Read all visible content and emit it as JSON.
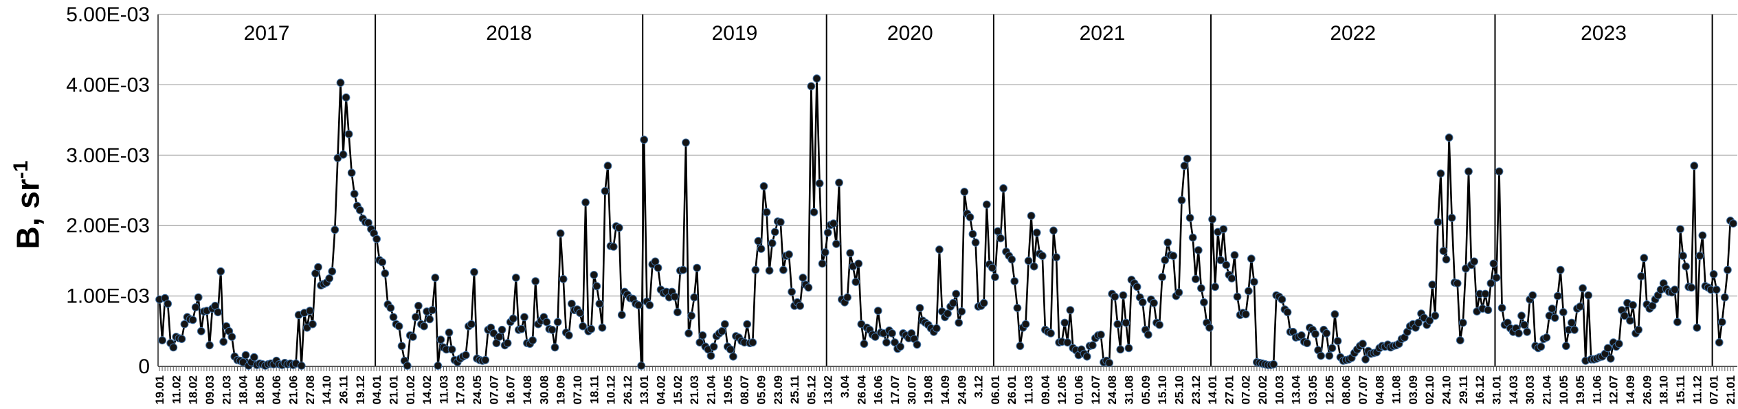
{
  "chart_data": {
    "type": "line",
    "title": "",
    "y_title": {
      "text": "B, sr",
      "superscript": "-1"
    },
    "xlabel": "",
    "ylim": [
      0,
      0.005
    ],
    "value_unit": "1e-3 sr^-1",
    "grid": "horizontal-on",
    "legend": "none",
    "y_ticks": [
      "0",
      "1.00E-03",
      "2.00E-03",
      "3.00E-03",
      "4.00E-03",
      "5.00E-03"
    ],
    "label_every_nth_point": 6,
    "colors": {
      "line": "#000000",
      "marker_fill": "#141414",
      "marker_edge": "#3e6fa3",
      "gridline": "#a6a6a6",
      "axis": "#595959",
      "separator": "#000000",
      "text": "#000000"
    },
    "years": [
      {
        "label": "2017",
        "tick_labels": [
          "19.01",
          "11.02",
          "18.02",
          "09.03",
          "21.03",
          "18.04",
          "18.05",
          "04.06",
          "21.06",
          "27.08",
          "14.10",
          "26.11",
          "19.12"
        ],
        "values": [
          0.95,
          0.37,
          0.97,
          0.89,
          0.33,
          0.27,
          0.42,
          0.4,
          0.39,
          0.6,
          0.7,
          0.67,
          0.66,
          0.84,
          0.98,
          0.5,
          0.78,
          0.79,
          0.3,
          0.82,
          0.86,
          0.77,
          1.35,
          0.35,
          0.57,
          0.5,
          0.42,
          0.14,
          0.09,
          0.08,
          0.06,
          0.16,
          0.01,
          0.06,
          0.13,
          0.02,
          0.04,
          0.03,
          0.01,
          0.03,
          0.04,
          0.03,
          0.08,
          0.03,
          0.02,
          0.05,
          0.03,
          0.04,
          0.02,
          0.04,
          0.73,
          0.01,
          0.76,
          0.55,
          0.79,
          0.6,
          1.32,
          1.41,
          1.15,
          1.17,
          1.19,
          1.25,
          1.35,
          1.94,
          2.96,
          4.03,
          3.01,
          3.82,
          3.3,
          2.75,
          2.45,
          2.28,
          2.22,
          2.1,
          2.05,
          2.04,
          1.95,
          1.89
        ]
      },
      {
        "label": "2018",
        "tick_labels": [
          "04.01",
          "21.01",
          "01.02",
          "14.02",
          "11.03",
          "17.03",
          "24.05",
          "07.07",
          "16.07",
          "14.08",
          "30.08",
          "19.09",
          "07.10",
          "18.11",
          "10.12",
          "26.12"
        ],
        "values": [
          1.81,
          1.51,
          1.48,
          1.32,
          0.88,
          0.83,
          0.7,
          0.6,
          0.57,
          0.29,
          0.08,
          0.01,
          0.44,
          0.42,
          0.7,
          0.86,
          0.6,
          0.57,
          0.78,
          0.67,
          0.8,
          1.26,
          0.01,
          0.38,
          0.27,
          0.24,
          0.48,
          0.24,
          0.09,
          0.06,
          0.11,
          0.14,
          0.16,
          0.57,
          0.6,
          1.34,
          0.11,
          0.09,
          0.08,
          0.09,
          0.52,
          0.55,
          0.47,
          0.33,
          0.42,
          0.52,
          0.3,
          0.33,
          0.63,
          0.68,
          1.26,
          0.52,
          0.53,
          0.7,
          0.33,
          0.32,
          0.37,
          1.21,
          0.6,
          0.65,
          0.7,
          0.63,
          0.53,
          0.52,
          0.27,
          0.63,
          1.89,
          1.24,
          0.48,
          0.44,
          0.89,
          0.8,
          0.81,
          0.76,
          0.57,
          2.33,
          0.5,
          0.53,
          1.3,
          1.14,
          0.89,
          0.55,
          2.49,
          2.85,
          1.71,
          1.7,
          1.99,
          1.97,
          0.73,
          1.06,
          1.02,
          0.97,
          0.96,
          0.89,
          0.87,
          0.01
        ]
      },
      {
        "label": "2019",
        "tick_labels": [
          "13.01",
          "04.02",
          "15.02",
          "21.03",
          "21.04",
          "19.05",
          "08.07",
          "05.09",
          "23.09",
          "25.11",
          "05.12"
        ],
        "values": [
          3.22,
          0.92,
          0.87,
          1.45,
          1.49,
          1.4,
          1.09,
          1.04,
          1.06,
          0.98,
          1.06,
          0.99,
          0.77,
          1.36,
          1.37,
          3.18,
          0.47,
          0.72,
          0.98,
          1.4,
          0.34,
          0.44,
          0.28,
          0.24,
          0.15,
          0.28,
          0.43,
          0.47,
          0.5,
          0.6,
          0.28,
          0.24,
          0.14,
          0.43,
          0.41,
          0.36,
          0.34,
          0.6,
          0.33,
          0.34,
          1.37,
          1.78,
          1.67,
          2.56,
          2.19,
          1.36,
          1.75,
          1.91,
          2.06,
          2.05,
          1.37,
          1.57,
          1.59,
          1.06,
          0.86,
          0.91,
          0.86,
          1.26,
          1.16,
          1.12,
          3.98,
          2.19,
          4.09,
          2.6,
          1.46,
          1.62
        ]
      },
      {
        "label": "2020",
        "tick_labels": [
          "13.02",
          "3.04",
          "26.04",
          "16.06",
          "17.07",
          "30.07",
          "19.08",
          "14.09",
          "24.09",
          "3.12"
        ],
        "values": [
          1.9,
          2.01,
          2.03,
          1.74,
          2.61,
          0.95,
          0.91,
          0.98,
          1.61,
          1.42,
          1.2,
          1.46,
          0.6,
          0.32,
          0.55,
          0.52,
          0.45,
          0.42,
          0.79,
          0.48,
          0.47,
          0.34,
          0.51,
          0.47,
          0.34,
          0.25,
          0.28,
          0.47,
          0.44,
          0.4,
          0.47,
          0.39,
          0.31,
          0.83,
          0.65,
          0.62,
          0.59,
          0.54,
          0.49,
          0.54,
          1.66,
          0.78,
          0.7,
          0.75,
          0.85,
          0.9,
          1.03,
          0.62,
          0.78,
          2.48,
          2.17,
          2.12,
          1.88,
          1.76,
          0.85,
          0.86,
          0.9,
          2.3,
          1.45,
          1.4
        ]
      },
      {
        "label": "2021",
        "tick_labels": [
          "06.01",
          "26.01",
          "11.03",
          "09.04",
          "12.05",
          "01.06",
          "12.07",
          "24.08",
          "31.08",
          "05.09",
          "15.10",
          "25.10",
          "23.12"
        ],
        "values": [
          1.27,
          1.92,
          1.82,
          2.53,
          1.63,
          1.57,
          1.52,
          1.21,
          0.83,
          0.29,
          0.55,
          0.6,
          1.5,
          2.14,
          1.42,
          1.9,
          1.6,
          1.57,
          0.52,
          0.49,
          0.47,
          1.93,
          1.55,
          0.34,
          0.35,
          0.62,
          0.34,
          0.8,
          0.26,
          0.23,
          0.16,
          0.24,
          0.18,
          0.14,
          0.29,
          0.3,
          0.4,
          0.44,
          0.45,
          0.06,
          0.08,
          0.05,
          1.03,
          0.99,
          0.6,
          0.24,
          1.01,
          0.62,
          0.26,
          1.23,
          1.18,
          1.13,
          0.98,
          0.91,
          0.52,
          0.45,
          0.95,
          0.9,
          0.62,
          0.59,
          1.27,
          1.51,
          1.76,
          1.58,
          1.57,
          1.0,
          1.05,
          2.36,
          2.85,
          2.95,
          2.11,
          1.83,
          1.24,
          1.65,
          1.11,
          0.91,
          0.62,
          0.55
        ]
      },
      {
        "label": "2022",
        "tick_labels": [
          "14.01",
          "27.01",
          "07.02",
          "20.02",
          "10.03",
          "13.04",
          "03.05",
          "12.05",
          "08.06",
          "07.07",
          "04.08",
          "11.08",
          "03.09",
          "02.10",
          "24.10",
          "29.11",
          "16.12"
        ],
        "values": [
          2.09,
          1.13,
          1.91,
          1.51,
          1.95,
          1.44,
          1.3,
          1.25,
          1.58,
          0.99,
          0.73,
          0.76,
          0.74,
          1.07,
          1.53,
          1.2,
          0.06,
          0.05,
          0.04,
          0.03,
          0.02,
          0.02,
          0.03,
          1.01,
          0.99,
          0.95,
          0.81,
          0.77,
          0.49,
          0.49,
          0.41,
          0.42,
          0.44,
          0.35,
          0.33,
          0.55,
          0.52,
          0.46,
          0.23,
          0.15,
          0.52,
          0.47,
          0.15,
          0.26,
          0.74,
          0.36,
          0.13,
          0.08,
          0.09,
          0.1,
          0.12,
          0.19,
          0.24,
          0.29,
          0.32,
          0.1,
          0.22,
          0.18,
          0.19,
          0.2,
          0.26,
          0.29,
          0.28,
          0.31,
          0.27,
          0.29,
          0.3,
          0.32,
          0.39,
          0.41,
          0.49,
          0.57,
          0.6,
          0.55,
          0.62,
          0.75,
          0.69,
          0.59,
          0.65,
          1.16,
          0.72,
          2.05,
          2.74,
          1.64,
          1.52,
          3.25,
          2.11,
          1.19,
          1.18,
          0.37,
          0.62,
          1.39,
          2.77,
          1.44,
          1.49,
          0.78,
          1.03,
          0.82,
          1.03,
          0.8,
          1.18,
          1.46
        ]
      },
      {
        "label": "2023",
        "tick_labels": [
          "31.01",
          "14.03",
          "30.03",
          "21.04",
          "10.05",
          "19.05",
          "11.06",
          "12.07",
          "14.09",
          "26.09",
          "18.10",
          "15.11",
          "11.12"
        ],
        "values": [
          1.26,
          2.77,
          0.83,
          0.59,
          0.62,
          0.54,
          0.49,
          0.54,
          0.47,
          0.72,
          0.59,
          0.49,
          0.95,
          1.01,
          0.29,
          0.26,
          0.28,
          0.39,
          0.41,
          0.72,
          0.82,
          0.69,
          1.0,
          1.37,
          0.77,
          0.29,
          0.52,
          0.62,
          0.52,
          0.82,
          0.85,
          1.11,
          0.08,
          1.01,
          0.1,
          0.1,
          0.11,
          0.13,
          0.14,
          0.18,
          0.26,
          0.11,
          0.34,
          0.28,
          0.32,
          0.8,
          0.72,
          0.9,
          0.65,
          0.87,
          0.47,
          0.52,
          1.28,
          1.54,
          0.88,
          0.82,
          0.86,
          0.95,
          1.01,
          1.09,
          1.18,
          1.1,
          1.06,
          1.05,
          1.09,
          0.63,
          1.95,
          1.57,
          1.42,
          1.13,
          1.12,
          2.85,
          0.55,
          1.57,
          1.86,
          1.14,
          1.12,
          1.09
        ]
      },
      {
        "label": "",
        "tick_labels": [
          "07.01",
          "21.01"
        ],
        "values": [
          1.31,
          1.09,
          0.34,
          0.63,
          0.98,
          1.37,
          2.07,
          2.03
        ]
      }
    ]
  }
}
